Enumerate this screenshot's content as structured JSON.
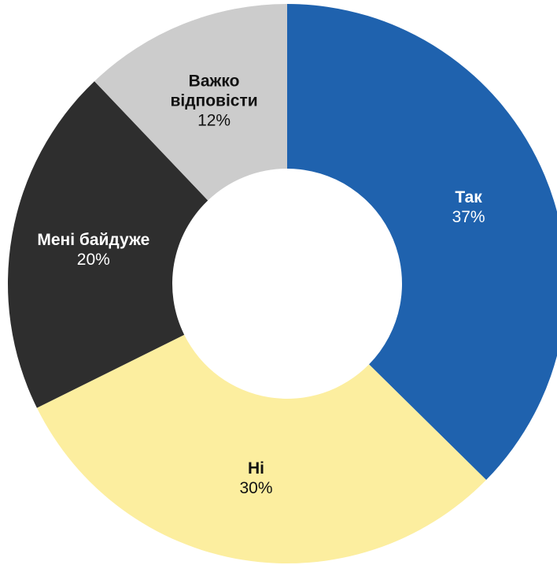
{
  "chart_data": {
    "type": "donut",
    "categories": [
      "Так",
      "Ні",
      "Мені байдуже",
      "Важко відповісти"
    ],
    "values": [
      37,
      30,
      20,
      12
    ],
    "value_labels": [
      "37%",
      "30%",
      "20%",
      "12%"
    ],
    "colors": [
      "#1f62ae",
      "#fcee9f",
      "#2e2e2e",
      "#cccccc"
    ]
  }
}
